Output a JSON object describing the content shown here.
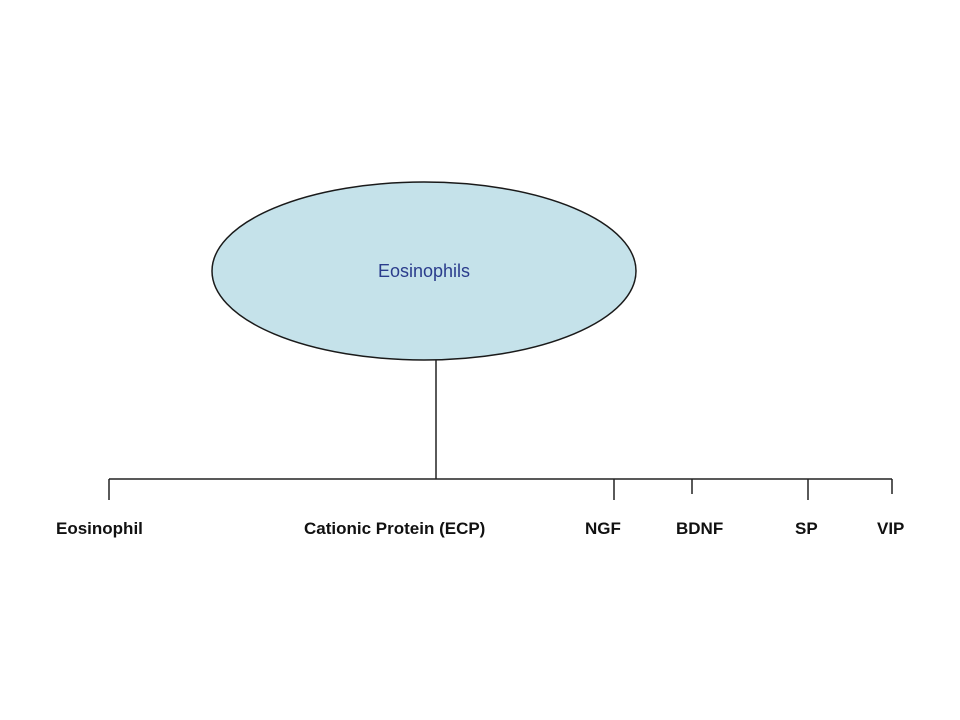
{
  "diagram": {
    "root": {
      "label": "Eosinophils",
      "fill_color": "#c5e2ea",
      "text_color": "#2a3c8c"
    },
    "leaves": [
      {
        "id": "eosinophil",
        "label": "Eosinophil"
      },
      {
        "id": "ecp",
        "label": "Cationic Protein (ECP)"
      },
      {
        "id": "ngf",
        "label": "NGF"
      },
      {
        "id": "bdnf",
        "label": "BDNF"
      },
      {
        "id": "sp",
        "label": "SP"
      },
      {
        "id": "vip",
        "label": "VIP"
      }
    ],
    "line_color": "#222222",
    "label_color": "#111111"
  }
}
